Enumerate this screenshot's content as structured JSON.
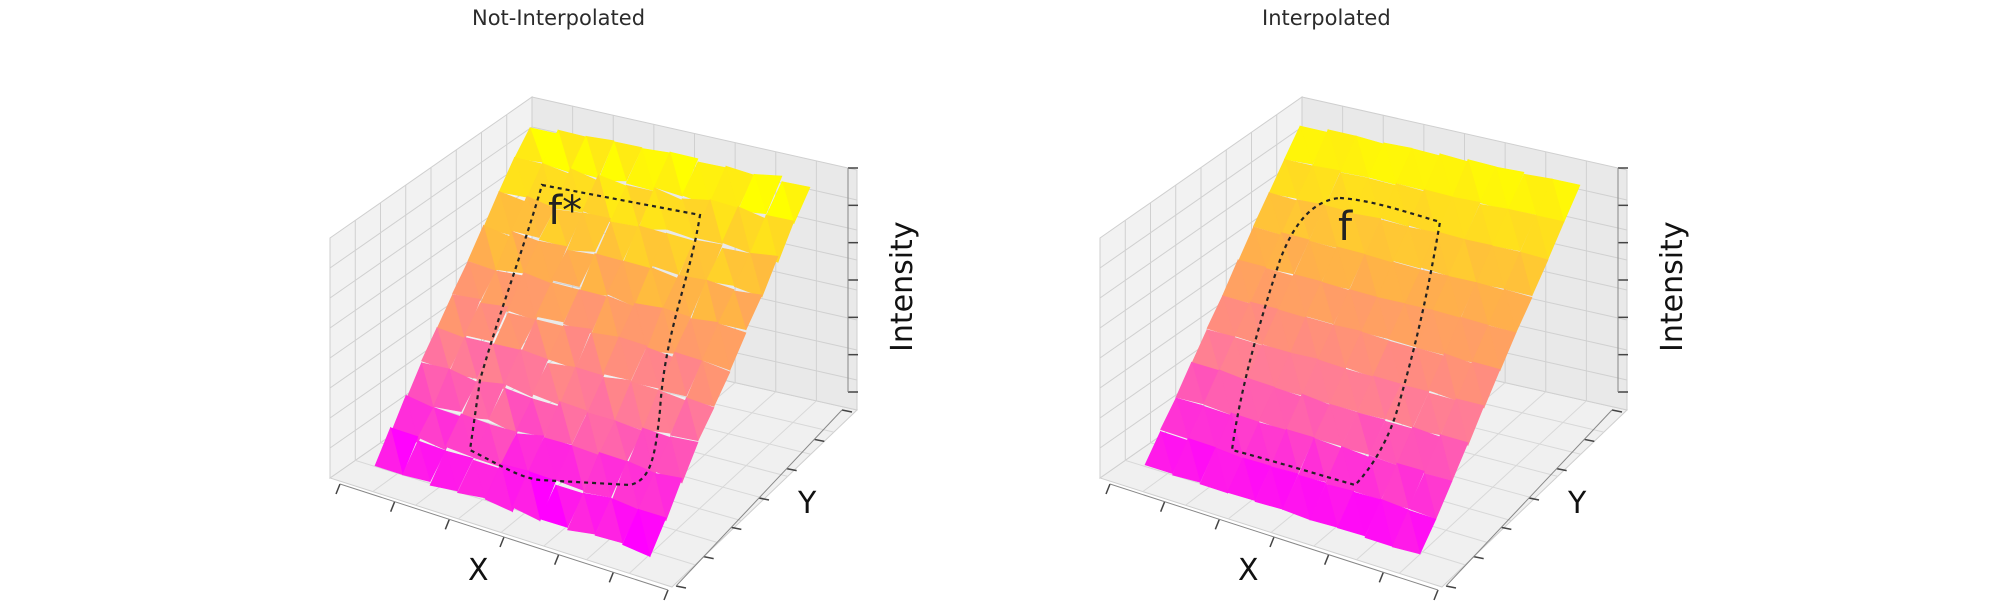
{
  "chart_data": [
    {
      "type": "surface3d",
      "title": "Not-Interpolated",
      "xlabel": "X",
      "ylabel": "Y",
      "zlabel": "Intensity",
      "annotation": "f*",
      "tick_labels": "hidden",
      "grid": true,
      "colormap": [
        "#ff00ff",
        "#ff7a9a",
        "#ffb347",
        "#ffff00"
      ]
    },
    {
      "type": "surface3d",
      "title": "Interpolated",
      "xlabel": "X",
      "ylabel": "Y",
      "zlabel": "Intensity",
      "annotation": "f",
      "tick_labels": "hidden",
      "grid": true,
      "colormap": [
        "#ff00ff",
        "#ff7a9a",
        "#ffb347",
        "#ffff00"
      ]
    }
  ]
}
